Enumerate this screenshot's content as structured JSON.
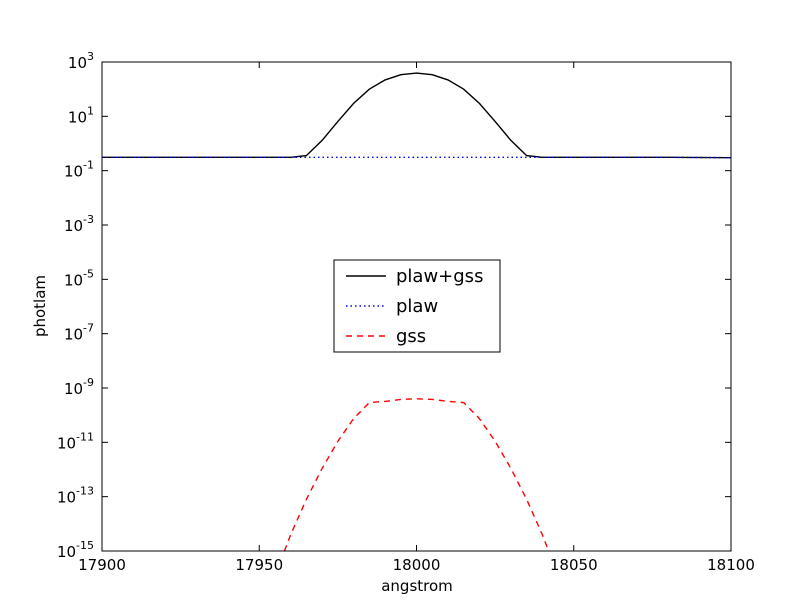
{
  "chart_data": {
    "type": "line",
    "title": "",
    "xlabel": "angstrom",
    "ylabel": "photlam",
    "xlim": [
      17900,
      18100
    ],
    "ylim": [
      1e-15,
      1000
    ],
    "yscale": "log",
    "grid": false,
    "legend_position": "center",
    "x_ticks": [
      {
        "value": 17900,
        "label": "17900"
      },
      {
        "value": 17950,
        "label": "17950"
      },
      {
        "value": 18000,
        "label": "18000"
      },
      {
        "value": 18050,
        "label": "18050"
      },
      {
        "value": 18100,
        "label": "18100"
      }
    ],
    "y_ticks": [
      {
        "value": 1e-15,
        "base": "10",
        "exp": "-15"
      },
      {
        "value": 1e-13,
        "base": "10",
        "exp": "-13"
      },
      {
        "value": 1e-11,
        "base": "10",
        "exp": "-11"
      },
      {
        "value": 1e-09,
        "base": "10",
        "exp": "-9"
      },
      {
        "value": 1e-07,
        "base": "10",
        "exp": "-7"
      },
      {
        "value": 1e-05,
        "base": "10",
        "exp": "-5"
      },
      {
        "value": 0.001,
        "base": "10",
        "exp": "-3"
      },
      {
        "value": 0.1,
        "base": "10",
        "exp": "-1"
      },
      {
        "value": 10,
        "base": "10",
        "exp": "1"
      },
      {
        "value": 1000,
        "base": "10",
        "exp": "3"
      }
    ],
    "x": [
      17900,
      17920,
      17940,
      17950,
      17960,
      17965,
      17970,
      17975,
      17980,
      17985,
      17990,
      17995,
      18000,
      18005,
      18010,
      18015,
      18020,
      18025,
      18030,
      18035,
      18040,
      18050,
      18060,
      18080,
      18100
    ],
    "series": [
      {
        "name": "plaw+gss",
        "color": "#000000",
        "style": "solid",
        "values": [
          0.31,
          0.31,
          0.31,
          0.31,
          0.31,
          0.36,
          1.3,
          6.5,
          30,
          100,
          220,
          340,
          390,
          340,
          220,
          100,
          30,
          6.5,
          1.3,
          0.36,
          0.31,
          0.31,
          0.31,
          0.31,
          0.3
        ]
      },
      {
        "name": "plaw",
        "color": "#0000ff",
        "style": "dotted",
        "values": [
          0.31,
          0.31,
          0.31,
          0.31,
          0.31,
          0.31,
          0.31,
          0.31,
          0.31,
          0.31,
          0.31,
          0.31,
          0.31,
          0.31,
          0.31,
          0.31,
          0.31,
          0.31,
          0.31,
          0.31,
          0.31,
          0.31,
          0.31,
          0.31,
          0.3
        ]
      },
      {
        "name": "gss",
        "color": "#ff0000",
        "style": "dashed",
        "x": [
          17958,
          17960,
          17965,
          17970,
          17975,
          17980,
          17985,
          17990,
          17995,
          18000,
          18005,
          18010,
          18015,
          18020,
          18025,
          18030,
          18035,
          18040,
          18042
        ],
        "values": [
          1e-15,
          4e-15,
          8e-14,
          1.1e-12,
          1.1e-11,
          7.5e-11,
          2.9e-10,
          3.2e-10,
          3.8e-10,
          4e-10,
          3.8e-10,
          3.2e-10,
          2.9e-10,
          7.5e-11,
          1.1e-11,
          1.1e-12,
          8e-14,
          4e-15,
          1e-15
        ]
      }
    ]
  }
}
